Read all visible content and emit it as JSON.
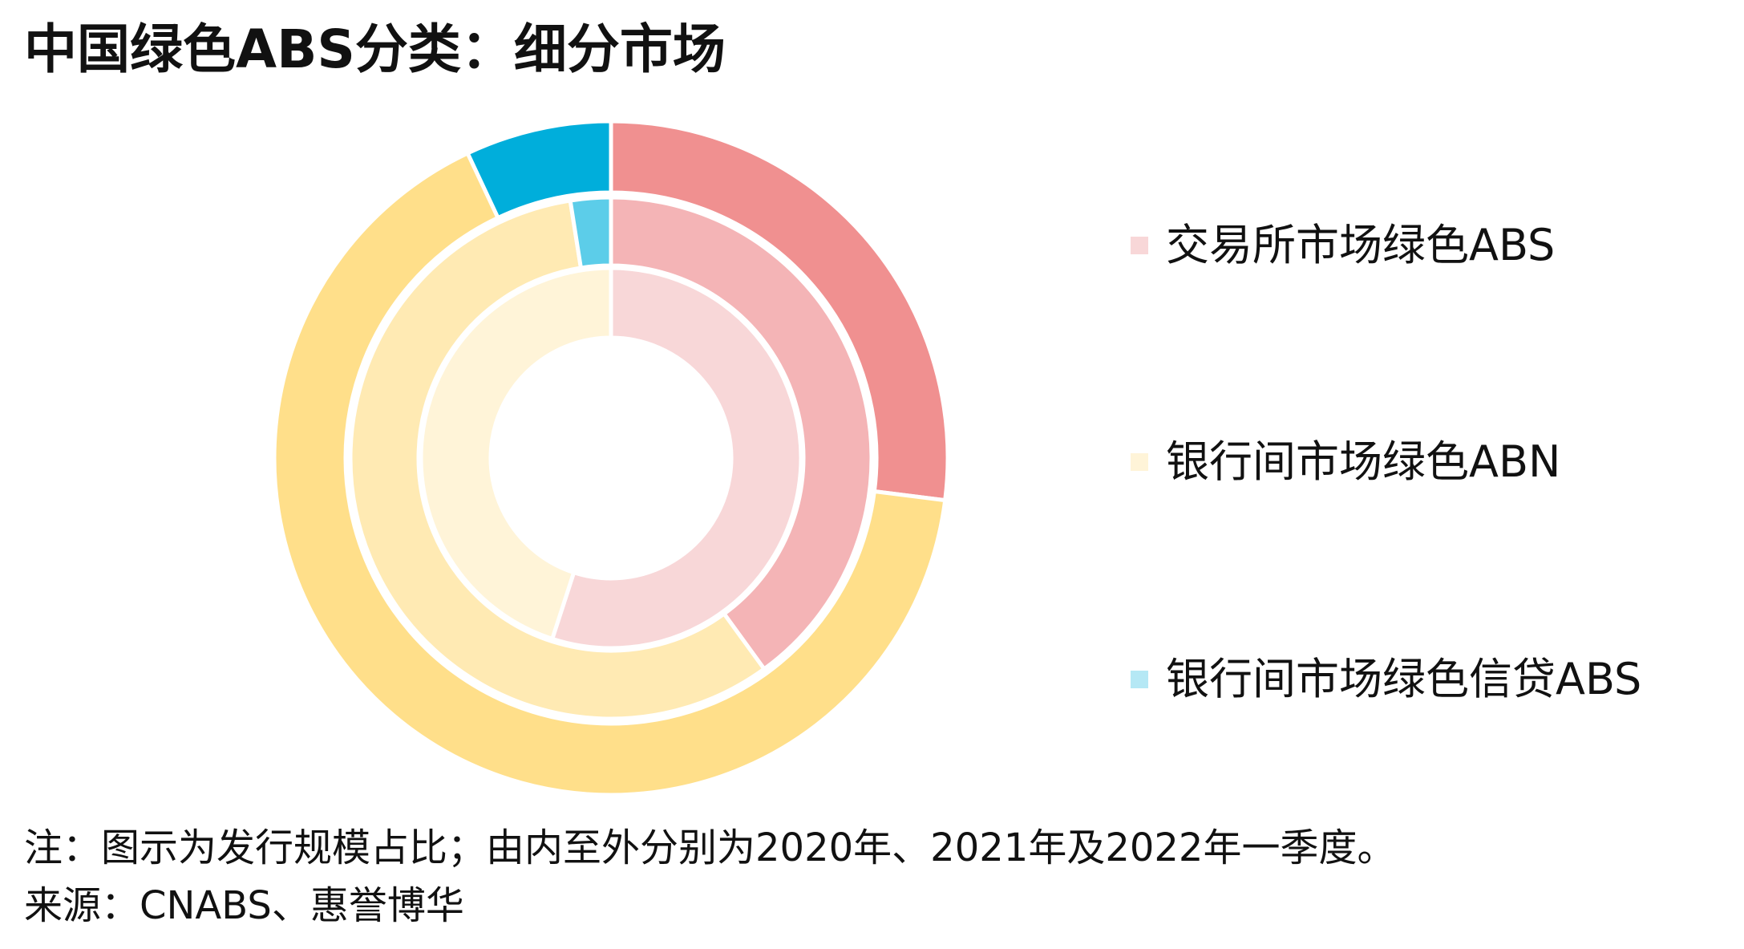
{
  "title": "中国绿色ABS分类：细分市场",
  "note": "注：图示为发行规模占比；由内至外分别为2020年、2021年及2022年一季度。",
  "source": "来源：CNABS、惠誉博华",
  "legend": [
    {
      "label": "交易所市场绿色ABS",
      "color": "#f8d7d8"
    },
    {
      "label": "银行间市场绿色ABN",
      "color": "#fff4d8"
    },
    {
      "label": "银行间市场绿色信贷ABS",
      "color": "#b5e8f5"
    }
  ],
  "chart_data": {
    "type": "pie",
    "variant": "nested-donut",
    "categories": [
      "交易所市场绿色ABS",
      "银行间市场绿色ABN",
      "银行间市场绿色信贷ABS"
    ],
    "series": [
      {
        "name": "2020年",
        "values": [
          55,
          45,
          0
        ],
        "colors": [
          "#f8d7d8",
          "#fff4d8",
          "#b5e8f5"
        ]
      },
      {
        "name": "2021年",
        "values": [
          40,
          57.5,
          2.5
        ],
        "colors": [
          "#f4b4b6",
          "#ffeab3",
          "#5ccde9"
        ]
      },
      {
        "name": "2022年一季度",
        "values": [
          27,
          66,
          7
        ],
        "colors": [
          "#f09090",
          "#ffdf8a",
          "#00aedb"
        ]
      }
    ],
    "unit": "%",
    "legend_position": "right"
  }
}
